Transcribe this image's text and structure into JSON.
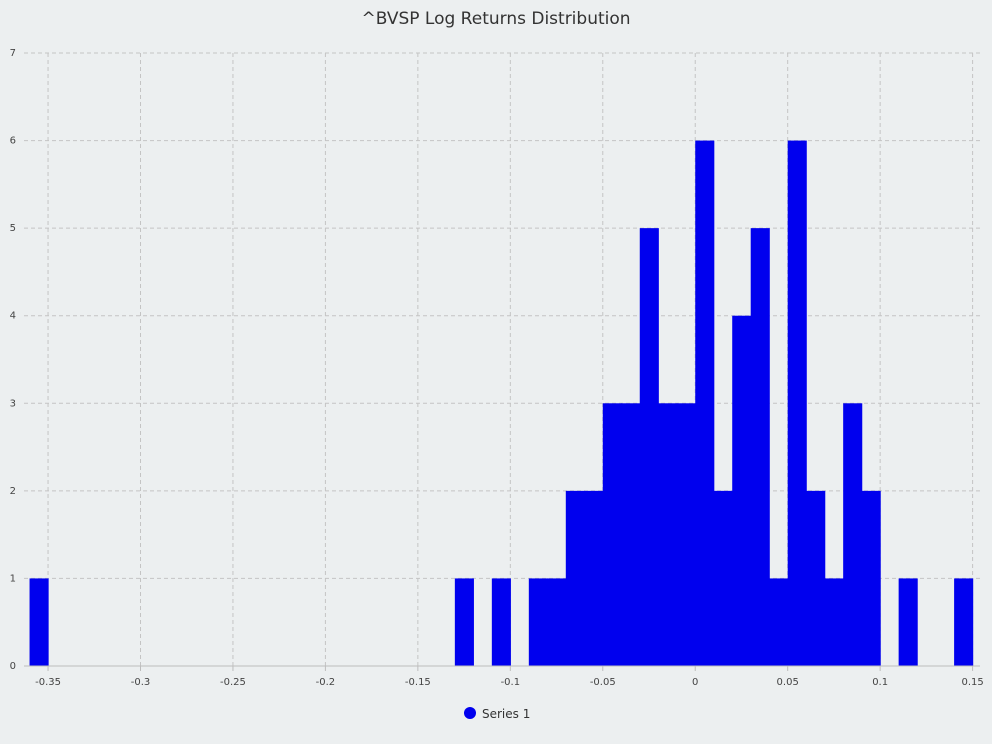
{
  "chart_data": {
    "type": "bar",
    "title": "^BVSP Log Returns Distribution",
    "xlabel": "",
    "ylabel": "",
    "xlim": [
      -0.363,
      0.154
    ],
    "ylim": [
      0,
      7
    ],
    "bin_width": 0.01,
    "grid": true,
    "legend_position": "bottom-center",
    "bar_color": "#0000ee",
    "background_color": "#eceff0",
    "x_ticks": [
      -0.35,
      -0.3,
      -0.25,
      -0.2,
      -0.15,
      -0.1,
      -0.05,
      0,
      0.05,
      0.1,
      0.15
    ],
    "x_tick_labels": [
      "-0.35",
      "-0.3",
      "-0.25",
      "-0.2",
      "-0.15",
      "-0.1",
      "-0.05",
      "0",
      "0.05",
      "0.1",
      "0.15"
    ],
    "y_ticks": [
      0,
      1,
      2,
      3,
      4,
      5,
      6,
      7
    ],
    "y_tick_labels": [
      "0",
      "1",
      "2",
      "3",
      "4",
      "5",
      "6",
      "7"
    ],
    "series": [
      {
        "name": "Series 1",
        "color": "#0000ee",
        "bins": [
          {
            "x": -0.36,
            "value": 1
          },
          {
            "x": -0.13,
            "value": 1
          },
          {
            "x": -0.11,
            "value": 1
          },
          {
            "x": -0.09,
            "value": 1
          },
          {
            "x": -0.08,
            "value": 1
          },
          {
            "x": -0.07,
            "value": 2
          },
          {
            "x": -0.06,
            "value": 2
          },
          {
            "x": -0.05,
            "value": 3
          },
          {
            "x": -0.04,
            "value": 3
          },
          {
            "x": -0.03,
            "value": 5
          },
          {
            "x": -0.02,
            "value": 3
          },
          {
            "x": -0.01,
            "value": 3
          },
          {
            "x": 0.0,
            "value": 6
          },
          {
            "x": 0.01,
            "value": 2
          },
          {
            "x": 0.02,
            "value": 4
          },
          {
            "x": 0.03,
            "value": 5
          },
          {
            "x": 0.04,
            "value": 1
          },
          {
            "x": 0.05,
            "value": 6
          },
          {
            "x": 0.06,
            "value": 2
          },
          {
            "x": 0.07,
            "value": 1
          },
          {
            "x": 0.08,
            "value": 3
          },
          {
            "x": 0.09,
            "value": 2
          },
          {
            "x": 0.11,
            "value": 1
          },
          {
            "x": 0.14,
            "value": 1
          }
        ]
      }
    ]
  }
}
